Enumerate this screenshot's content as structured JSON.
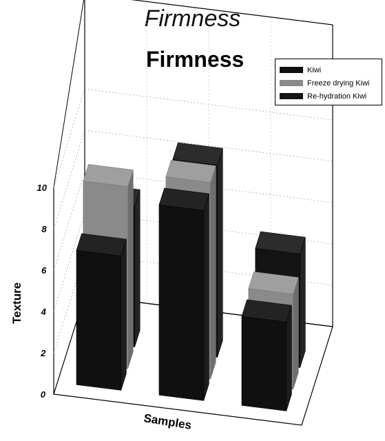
{
  "caption": "Firmness",
  "chart_data": {
    "type": "bar",
    "title": "Firmness",
    "xlabel": "Samples",
    "ylabel": "Texture",
    "ylim": [
      0,
      10
    ],
    "yticks": [
      "0",
      "2",
      "4",
      "6",
      "8",
      "10"
    ],
    "categories": [
      "",
      "",
      ""
    ],
    "series": [
      {
        "name": "Kiwi",
        "color": "#101010",
        "values": [
          6.5,
          9.2,
          4.3
        ]
      },
      {
        "name": "Freeze drying Kiwi",
        "color": "#8a8a8a",
        "values": [
          8.8,
          9.5,
          4.6
        ]
      },
      {
        "name": "Re-hydration Kiwi",
        "color": "#141414",
        "values": [
          6.8,
          9.3,
          5.5
        ]
      }
    ],
    "grid": true,
    "legend": "top-right"
  }
}
